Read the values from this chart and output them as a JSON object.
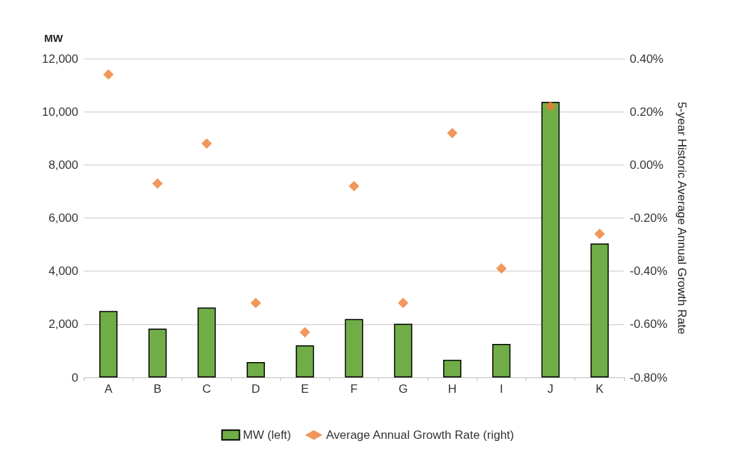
{
  "chart_data": {
    "type": "bar",
    "ylabel": "MW",
    "y2label": "5-year Historic Average Annual Growth Rate",
    "categories": [
      "A",
      "B",
      "C",
      "D",
      "E",
      "F",
      "G",
      "H",
      "I",
      "J",
      "K"
    ],
    "series": [
      {
        "name": "MW (left)",
        "color": "#70ad47",
        "values": [
          2500,
          1840,
          2630,
          580,
          1210,
          2200,
          2020,
          660,
          1260,
          10370,
          5040
        ]
      },
      {
        "name": "Average Annual Growth Rate (right)",
        "type": "scatter",
        "axis": "y2",
        "marker": "diamond",
        "color": "#ed7d31",
        "values": [
          0.34,
          -0.07,
          0.08,
          -0.52,
          -0.63,
          -0.08,
          -0.52,
          0.12,
          -0.39,
          0.22,
          -0.26
        ]
      }
    ],
    "ylim": [
      0,
      12000
    ],
    "yticks": [
      {
        "value": 0,
        "label": "0"
      },
      {
        "value": 2000,
        "label": "2,000"
      },
      {
        "value": 4000,
        "label": "4,000"
      },
      {
        "value": 6000,
        "label": "6,000"
      },
      {
        "value": 8000,
        "label": "8,000"
      },
      {
        "value": 10000,
        "label": "10,000"
      },
      {
        "value": 12000,
        "label": "12,000"
      }
    ],
    "y2lim": [
      -0.8,
      0.4
    ],
    "y2ticks": [
      {
        "value": -0.8,
        "label": "-0.80%"
      },
      {
        "value": -0.6,
        "label": "-0.60%"
      },
      {
        "value": -0.4,
        "label": "-0.40%"
      },
      {
        "value": -0.2,
        "label": "-0.20%"
      },
      {
        "value": 0,
        "label": "0.00%"
      },
      {
        "value": 0.2,
        "label": "0.20%"
      },
      {
        "value": 0.4,
        "label": "0.40%"
      }
    ],
    "grid": "y",
    "legend": "bottom"
  }
}
